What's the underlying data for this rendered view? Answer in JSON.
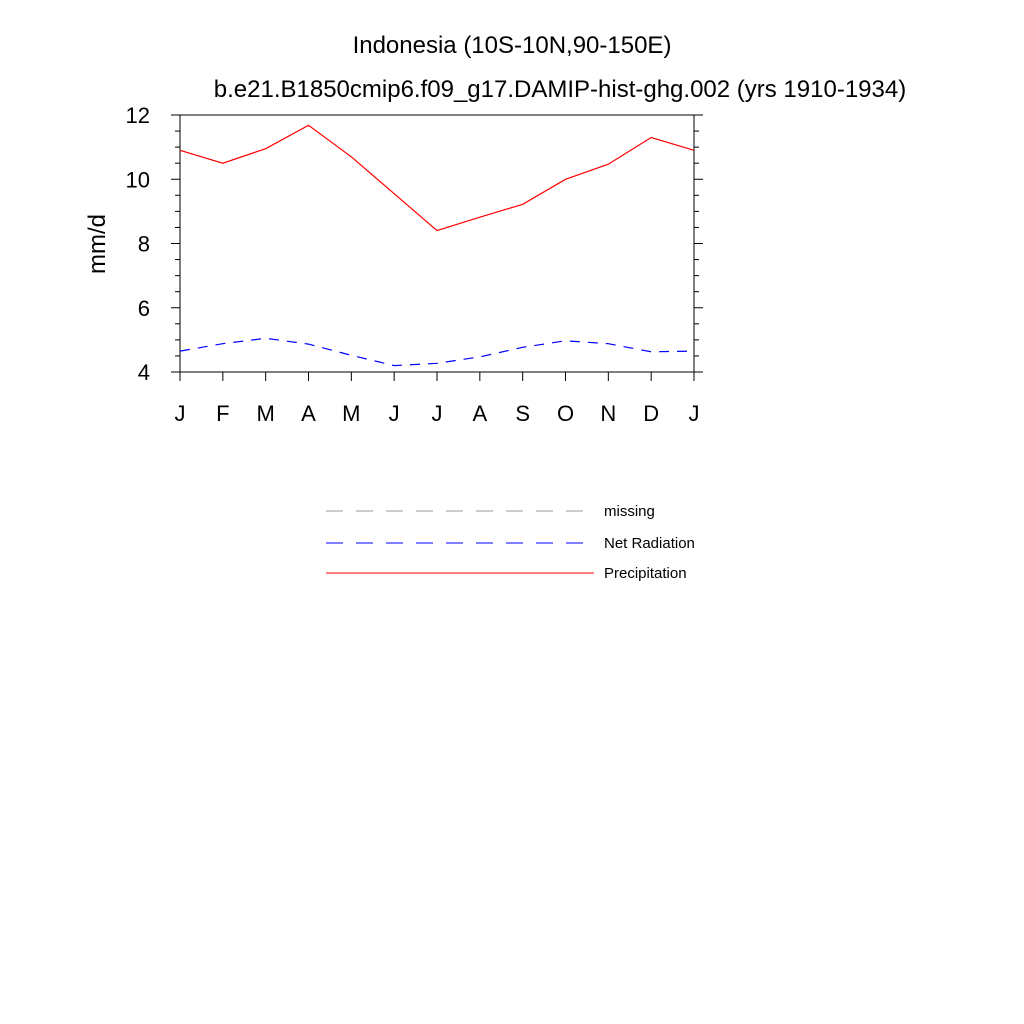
{
  "chart_data": {
    "type": "line",
    "title": "Indonesia (10S-10N,90-150E)",
    "subtitle": "b.e21.B1850cmip6.f09_g17.DAMIP-hist-ghg.002 (yrs 1910-1934)",
    "xlabel": "",
    "ylabel": "mm/d",
    "categories": [
      "J",
      "F",
      "M",
      "A",
      "M",
      "J",
      "J",
      "A",
      "S",
      "O",
      "N",
      "D",
      "J"
    ],
    "ylim": [
      4,
      12
    ],
    "yticks": [
      "4",
      "6",
      "8",
      "10",
      "12"
    ],
    "grid": false,
    "legend_position": "bottom",
    "series": [
      {
        "name": "Precipitation",
        "color": "#ff0000",
        "dash": "solid",
        "values": [
          10.9,
          10.5,
          10.95,
          11.68,
          10.7,
          9.55,
          8.4,
          8.82,
          9.22,
          10.0,
          10.47,
          11.3,
          10.9
        ]
      },
      {
        "name": "Net Radiation",
        "color": "#0000ff",
        "dash": "dashed",
        "values": [
          4.65,
          4.88,
          5.05,
          4.87,
          4.52,
          4.2,
          4.27,
          4.47,
          4.77,
          4.97,
          4.88,
          4.63,
          4.65
        ]
      }
    ],
    "legend": [
      {
        "label": "missing",
        "color": "#999999",
        "dash": "dashed"
      },
      {
        "label": "Net Radiation",
        "color": "#0000ff",
        "dash": "dashed"
      },
      {
        "label": "Precipitation",
        "color": "#ff0000",
        "dash": "solid"
      }
    ]
  }
}
